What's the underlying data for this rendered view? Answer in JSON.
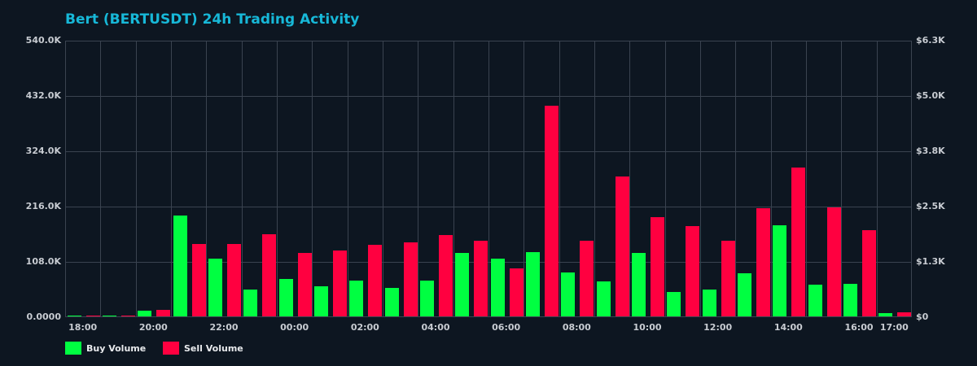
{
  "title": "Bert (BERTUSDT) 24h Trading Activity",
  "colors": {
    "background": "#0d1621",
    "title": "#17b8d8",
    "grid": "#3a4350",
    "buy": "#00ff41",
    "sell": "#ff0040",
    "tick_text": "#c8ccd2"
  },
  "y_axis_left": {
    "ticks": [
      "540.0K",
      "432.0K",
      "324.0K",
      "216.0K",
      "108.0K",
      "0.0000"
    ]
  },
  "y_axis_right": {
    "ticks": [
      "$6.3K",
      "$5.0K",
      "$3.8K",
      "$2.5K",
      "$1.3K",
      "$0"
    ]
  },
  "x_axis": {
    "ticks": [
      {
        "label": "18:00",
        "index": 0
      },
      {
        "label": "20:00",
        "index": 2
      },
      {
        "label": "22:00",
        "index": 4
      },
      {
        "label": "00:00",
        "index": 6
      },
      {
        "label": "02:00",
        "index": 8
      },
      {
        "label": "04:00",
        "index": 10
      },
      {
        "label": "06:00",
        "index": 12
      },
      {
        "label": "08:00",
        "index": 14
      },
      {
        "label": "10:00",
        "index": 16
      },
      {
        "label": "12:00",
        "index": 18
      },
      {
        "label": "14:00",
        "index": 20
      },
      {
        "label": "16:00",
        "index": 22
      },
      {
        "label": "17:00",
        "index": 23
      }
    ]
  },
  "legend": [
    {
      "label": "Buy Volume",
      "color": "#00ff41"
    },
    {
      "label": "Sell Volume",
      "color": "#ff0040"
    }
  ],
  "chart_data": {
    "type": "bar",
    "title": "Bert (BERTUSDT) 24h Trading Activity",
    "xlabel": "",
    "ylabel": "",
    "ylim": [
      0,
      540000
    ],
    "y2lim_label": [
      "$0",
      "$6.3K"
    ],
    "grid": true,
    "legend_position": "bottom-left",
    "categories": [
      "18:00",
      "19:00",
      "20:00",
      "21:00",
      "22:00",
      "23:00",
      "00:00",
      "01:00",
      "02:00",
      "03:00",
      "04:00",
      "05:00",
      "06:00",
      "07:00",
      "08:00",
      "09:00",
      "10:00",
      "11:00",
      "12:00",
      "13:00",
      "14:00",
      "15:00",
      "16:00",
      "17:00"
    ],
    "series": [
      {
        "name": "Buy Volume",
        "color": "#00ff41",
        "values": [
          1000,
          1000,
          11000,
          198000,
          113000,
          52000,
          73000,
          59000,
          71000,
          56000,
          71000,
          125000,
          114000,
          127000,
          86000,
          68000,
          125000,
          48000,
          52000,
          84000,
          179000,
          62000,
          64000,
          7000
        ]
      },
      {
        "name": "Sell Volume",
        "color": "#ff0040",
        "values": [
          1000,
          500,
          13000,
          143000,
          143000,
          162000,
          124000,
          129000,
          141000,
          146000,
          159000,
          149000,
          95000,
          414000,
          148000,
          275000,
          195000,
          178000,
          149000,
          213000,
          292000,
          214000,
          170000,
          8000
        ]
      }
    ]
  }
}
